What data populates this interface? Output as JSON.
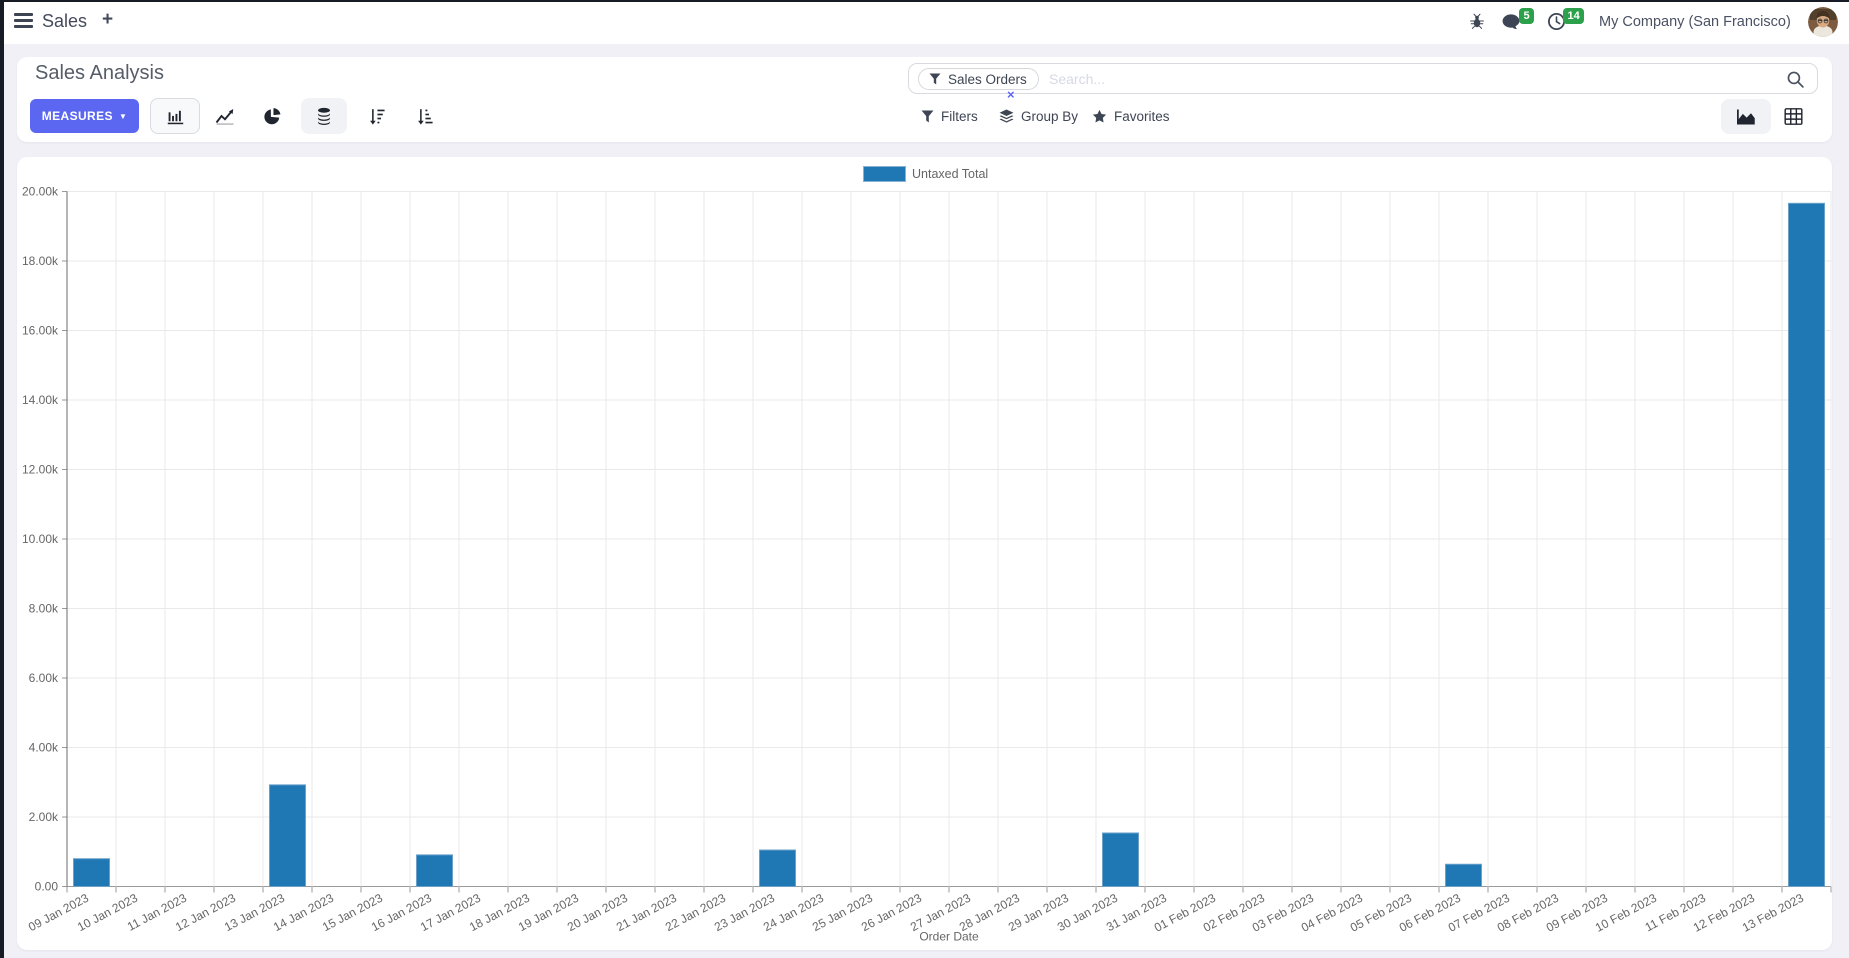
{
  "navbar": {
    "app_title": "Sales",
    "plus": "+",
    "messages_badge": "5",
    "activities_badge": "14",
    "company": "My Company (San Francisco)"
  },
  "control_panel": {
    "title": "Sales Analysis",
    "measures_label": "MEASURES",
    "search": {
      "facet": "Sales Orders",
      "placeholder": "Search...",
      "remove": "×"
    },
    "filters_label": "Filters",
    "group_by_label": "Group By",
    "favorites_label": "Favorites"
  },
  "colors": {
    "accent": "#5b67f1",
    "bar": "#1f77b4",
    "badge_green": "#2ca04b"
  },
  "chart_data": {
    "type": "bar",
    "title": "",
    "legend": [
      "Untaxed Total"
    ],
    "xlabel": "Order Date",
    "ylabel": "",
    "ylim": [
      0,
      20000
    ],
    "y_tick_labels": [
      "0.00",
      "2.00k",
      "4.00k",
      "6.00k",
      "8.00k",
      "10.00k",
      "12.00k",
      "14.00k",
      "16.00k",
      "18.00k",
      "20.00k"
    ],
    "grid": true,
    "legend_position": "top",
    "categories": [
      "09 Jan 2023",
      "10 Jan 2023",
      "11 Jan 2023",
      "12 Jan 2023",
      "13 Jan 2023",
      "14 Jan 2023",
      "15 Jan 2023",
      "16 Jan 2023",
      "17 Jan 2023",
      "18 Jan 2023",
      "19 Jan 2023",
      "20 Jan 2023",
      "21 Jan 2023",
      "22 Jan 2023",
      "23 Jan 2023",
      "24 Jan 2023",
      "25 Jan 2023",
      "26 Jan 2023",
      "27 Jan 2023",
      "28 Jan 2023",
      "29 Jan 2023",
      "30 Jan 2023",
      "31 Jan 2023",
      "01 Feb 2023",
      "02 Feb 2023",
      "03 Feb 2023",
      "04 Feb 2023",
      "05 Feb 2023",
      "06 Feb 2023",
      "07 Feb 2023",
      "08 Feb 2023",
      "09 Feb 2023",
      "10 Feb 2023",
      "11 Feb 2023",
      "12 Feb 2023",
      "13 Feb 2023"
    ],
    "series": [
      {
        "name": "Untaxed Total",
        "values": [
          800,
          0,
          0,
          0,
          2925,
          0,
          0,
          910,
          0,
          0,
          0,
          0,
          0,
          0,
          1050,
          0,
          0,
          0,
          0,
          0,
          0,
          1540,
          0,
          0,
          0,
          0,
          0,
          0,
          640,
          0,
          0,
          0,
          0,
          0,
          0,
          19660
        ]
      }
    ]
  }
}
